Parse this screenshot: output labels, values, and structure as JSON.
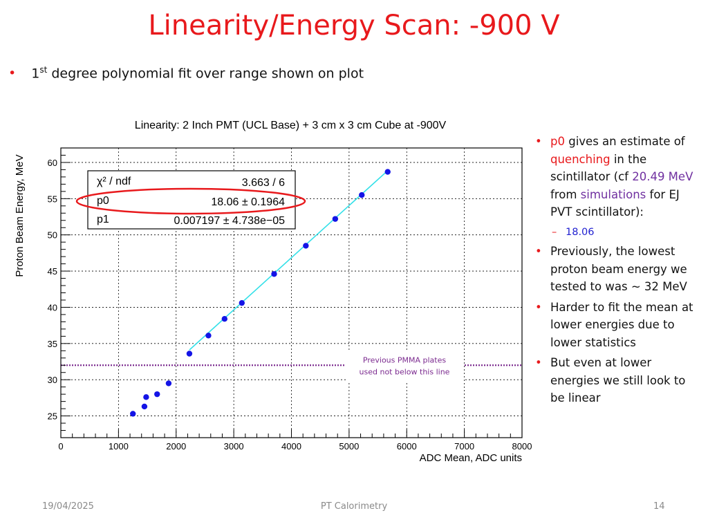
{
  "slide": {
    "title": "Linearity/Energy Scan: -900 V",
    "bullet_pre": "1",
    "bullet_sup": "st",
    "bullet_post": " degree polynomial fit over range shown on plot",
    "footer_date": "19/04/2025",
    "footer_center": "PT Calorimetry",
    "footer_page": "14"
  },
  "notes": {
    "n1_a": "p0",
    "n1_b": " gives an estimate of ",
    "n1_c": "quenching",
    "n1_d": " in the scintillator (cf ",
    "n1_e": "20.49 MeV",
    "n1_f": " from ",
    "n1_g": "simulations",
    "n1_h": " for EJ PVT scintillator):",
    "sub1": "18.06",
    "n2": "Previously, the lowest proton beam energy we tested to was ~ 32 MeV",
    "n3": "Harder to fit the mean at lower energies due to lower statistics",
    "n4": "But even at lower energies we still look to be linear"
  },
  "chart_data": {
    "type": "scatter",
    "title": "Linearity: 2 Inch PMT (UCL Base) + 3 cm x 3 cm Cube at -900V",
    "xlabel": "ADC Mean, ADC units",
    "ylabel": "Proton Beam Energy, MeV",
    "xlim": [
      0,
      8000
    ],
    "ylim": [
      22,
      62
    ],
    "xticks": [
      0,
      1000,
      2000,
      3000,
      4000,
      5000,
      6000,
      7000,
      8000
    ],
    "yticks": [
      25,
      30,
      35,
      40,
      45,
      50,
      55,
      60
    ],
    "grid": true,
    "series": [
      {
        "x": [
          1250,
          1450,
          1480,
          1670,
          1870,
          2230,
          2560,
          2840,
          3140,
          3700,
          4250,
          4760,
          5220,
          5670
        ],
        "y": [
          25.3,
          26.3,
          27.6,
          28.0,
          29.5,
          33.6,
          36.1,
          38.4,
          40.6,
          44.6,
          48.5,
          52.2,
          55.5,
          58.7
        ],
        "color": "#1414e6"
      }
    ],
    "fit": {
      "x_range": [
        2230,
        5670
      ],
      "p0": 18.06,
      "p1": 0.007197,
      "color": "#33e0e8"
    },
    "stats": {
      "rows": [
        {
          "label": "χ² / ndf",
          "value": "3.663 / 6"
        },
        {
          "label": "p0",
          "value": "18.06 ± 0.1964"
        },
        {
          "label": "p1",
          "value": "0.007197 ± 4.738e−05"
        }
      ],
      "highlight_color": "#e8191c"
    },
    "reference_line": {
      "y": 32,
      "color": "#7b2a8f",
      "label_line1": "Previous PMMA plates",
      "label_line2": "used not below this line"
    }
  }
}
